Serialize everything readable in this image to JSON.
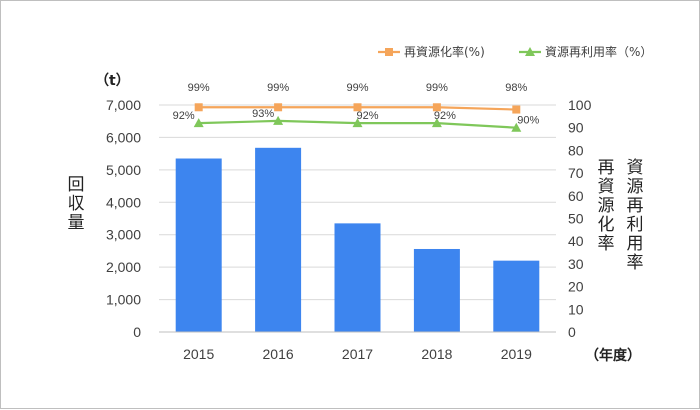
{
  "chart_data": {
    "type": "bar",
    "categories": [
      "2015",
      "2016",
      "2017",
      "2018",
      "2019"
    ],
    "bar_series": {
      "values": [
        5350,
        5680,
        3350,
        2560,
        2200
      ],
      "color": "#3d85ef"
    },
    "line_series": [
      {
        "name": "再資源化率(%)",
        "values": [
          99,
          99,
          99,
          99,
          98
        ],
        "labels": [
          "99%",
          "99%",
          "99%",
          "99%",
          "98%"
        ],
        "color": "#f5a55a",
        "marker": "square"
      },
      {
        "name": "資源再利用率（%）",
        "values": [
          92,
          93,
          92,
          92,
          90
        ],
        "labels": [
          "92%",
          "93%",
          "92%",
          "92%",
          "90%"
        ],
        "color": "#7fc75a",
        "marker": "triangle"
      }
    ],
    "left_axis": {
      "ylim": [
        0,
        7000
      ],
      "ticks": [
        "0",
        "1,000",
        "2,000",
        "3,000",
        "4,000",
        "5,000",
        "6,000",
        "7,000"
      ],
      "unit": "（t）",
      "label": "回収量"
    },
    "right_axis": {
      "ylim": [
        0,
        100
      ],
      "ticks": [
        "0",
        "10",
        "20",
        "30",
        "40",
        "50",
        "60",
        "70",
        "80",
        "90",
        "100"
      ],
      "label_1": "再資源化率",
      "label_2": "資源再利用率"
    },
    "x_unit": "（年度）",
    "grid": true,
    "legend_position": "top-right"
  }
}
